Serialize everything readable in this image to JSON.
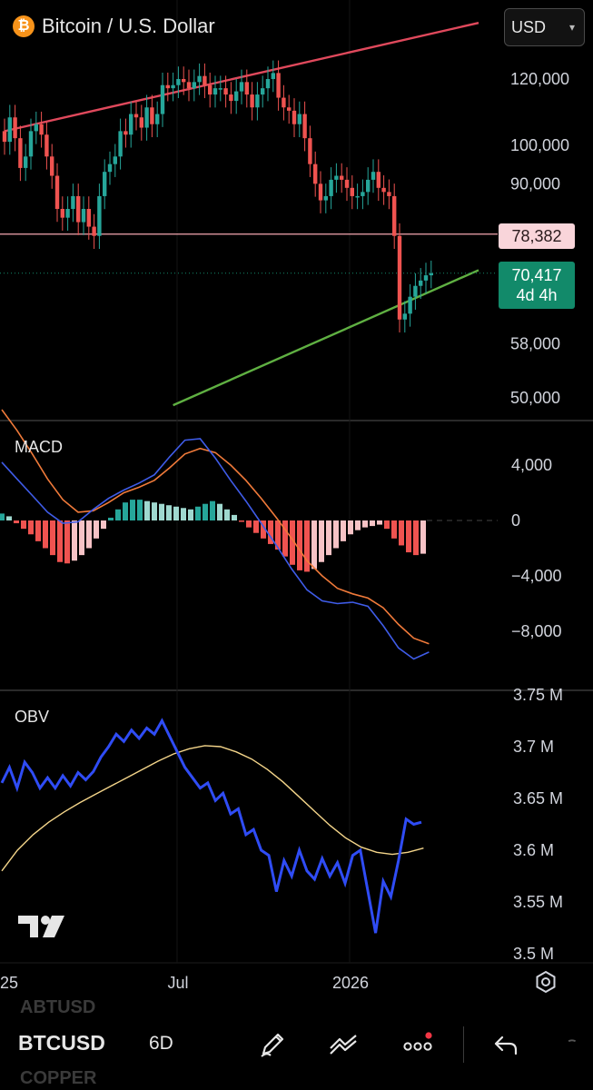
{
  "header": {
    "logo_glyph": "₿",
    "title": "Bitcoin / U.S. Dollar",
    "currency": "USD"
  },
  "price_tags": {
    "key_level": "78,382",
    "current_price": "70,417",
    "countdown": "4d 4h"
  },
  "panes": {
    "macd_label": "MACD",
    "obv_label": "OBV"
  },
  "toolbar": {
    "symbol": "BTCUSD",
    "timeframe": "6D",
    "ghost_above": "ABTUSD",
    "ghost_below": "COPPER"
  },
  "colors": {
    "up": "#26a69a",
    "down": "#ef5350",
    "resistance_line": "#e0495c",
    "support_line": "#5fb042",
    "key_level_line": "#f4a7b0",
    "macd_line": "#3f5ce8",
    "signal_line": "#f07a3a",
    "obv_line": "#2f4cf5",
    "obv_ma": "#f4d58a"
  },
  "chart_data": [
    {
      "type": "candlestick",
      "title": "Bitcoin / U.S. Dollar",
      "x_tick_labels": [
        "25",
        "Jul",
        "2026"
      ],
      "y_tick_labels": [
        "120,000",
        "100,000",
        "90,000",
        "58,000",
        "50,000"
      ],
      "y_ticks": [
        120000,
        100000,
        90000,
        58000,
        50000
      ],
      "scale": "log",
      "horizontal_level": 78382,
      "last_price": 70417,
      "trendlines": [
        {
          "name": "resistance",
          "from": [
            0,
            104000
          ],
          "to": [
            90,
            140000
          ]
        },
        {
          "name": "support",
          "from": [
            32,
            49000
          ],
          "to": [
            90,
            71000
          ]
        }
      ],
      "close": [
        101000,
        108000,
        102000,
        94000,
        97000,
        104000,
        106000,
        103000,
        97000,
        92000,
        84000,
        82000,
        84000,
        87000,
        81000,
        84000,
        80000,
        78000,
        87000,
        93000,
        95000,
        97000,
        104000,
        103000,
        109000,
        108000,
        105000,
        111000,
        106000,
        109000,
        118000,
        117000,
        118000,
        120000,
        119000,
        117000,
        119000,
        121000,
        118000,
        115000,
        117000,
        117000,
        115000,
        113000,
        116000,
        119000,
        115000,
        111000,
        115000,
        117000,
        120000,
        122000,
        114000,
        111000,
        110000,
        106000,
        109000,
        102000,
        95000,
        90000,
        86000,
        87000,
        91000,
        92000,
        91000,
        89000,
        87000,
        87000,
        88000,
        91000,
        93000,
        89000,
        88000,
        87000,
        78000,
        62000,
        63000,
        66000,
        68000,
        69000,
        70000,
        70417
      ],
      "open": [
        104000,
        101000,
        108000,
        102000,
        94000,
        97000,
        104000,
        106000,
        103000,
        97000,
        92000,
        84000,
        82000,
        84000,
        87000,
        81000,
        84000,
        80000,
        78000,
        87000,
        93000,
        95000,
        97000,
        104000,
        103000,
        109000,
        108000,
        105000,
        111000,
        106000,
        109000,
        118000,
        117000,
        118000,
        120000,
        119000,
        117000,
        119000,
        121000,
        118000,
        115000,
        117000,
        117000,
        115000,
        113000,
        116000,
        119000,
        115000,
        111000,
        115000,
        117000,
        120000,
        122000,
        114000,
        111000,
        110000,
        106000,
        109000,
        102000,
        95000,
        90000,
        86000,
        87000,
        91000,
        92000,
        91000,
        89000,
        87000,
        87000,
        88000,
        91000,
        93000,
        89000,
        88000,
        87000,
        78000,
        62000,
        63000,
        66000,
        68000,
        69000,
        70000
      ]
    },
    {
      "type": "bar_line",
      "name": "MACD",
      "y_tick_labels": [
        "4,000",
        "0",
        "−4,000",
        "−8,000"
      ],
      "y_ticks": [
        4000,
        0,
        -4000,
        -8000
      ],
      "histogram": [
        500,
        300,
        -200,
        -600,
        -1000,
        -1500,
        -2000,
        -2500,
        -3000,
        -3100,
        -2900,
        -2500,
        -2000,
        -1300,
        -600,
        200,
        800,
        1300,
        1500,
        1500,
        1400,
        1300,
        1200,
        1100,
        1000,
        900,
        800,
        1000,
        1200,
        1400,
        1200,
        800,
        400,
        -100,
        -500,
        -900,
        -1300,
        -1700,
        -2100,
        -2600,
        -3200,
        -3600,
        -3700,
        -3500,
        -3000,
        -2500,
        -2000,
        -1500,
        -1000,
        -700,
        -500,
        -400,
        -300,
        -600,
        -1300,
        -1800,
        -2300,
        -2500,
        -2400
      ],
      "macd": [
        4200,
        3000,
        1800,
        600,
        -200,
        -100,
        800,
        1600,
        2200,
        2700,
        3300,
        4600,
        5800,
        5900,
        4500,
        2900,
        1400,
        -200,
        -1800,
        -3500,
        -5000,
        -5800,
        -6000,
        -5900,
        -6200,
        -7600,
        -9200,
        -10000,
        -9500
      ],
      "signal": [
        8000,
        6500,
        4800,
        3000,
        1500,
        600,
        700,
        1300,
        2000,
        2400,
        2900,
        3800,
        4800,
        5200,
        4900,
        4000,
        2900,
        1600,
        200,
        -1300,
        -2900,
        -4000,
        -4900,
        -5300,
        -5600,
        -6300,
        -7500,
        -8500,
        -8900
      ]
    },
    {
      "type": "line",
      "name": "OBV",
      "y_tick_labels": [
        "3.75 M",
        "3.7 M",
        "3.65 M",
        "3.6 M",
        "3.55 M",
        "3.5 M"
      ],
      "y_ticks": [
        3.75,
        3.7,
        3.65,
        3.6,
        3.55,
        3.5
      ],
      "obv": [
        3.665,
        3.68,
        3.66,
        3.685,
        3.675,
        3.66,
        3.67,
        3.66,
        3.672,
        3.662,
        3.675,
        3.668,
        3.676,
        3.69,
        3.7,
        3.712,
        3.705,
        3.716,
        3.708,
        3.718,
        3.712,
        3.725,
        3.71,
        3.695,
        3.68,
        3.67,
        3.66,
        3.665,
        3.648,
        3.655,
        3.635,
        3.64,
        3.615,
        3.62,
        3.6,
        3.595,
        3.56,
        3.59,
        3.575,
        3.6,
        3.58,
        3.572,
        3.592,
        3.575,
        3.588,
        3.568,
        3.595,
        3.6,
        3.56,
        3.52,
        3.57,
        3.555,
        3.59,
        3.63,
        3.625,
        3.627
      ],
      "obv_ma": [
        3.58,
        3.6,
        3.615,
        3.627,
        3.637,
        3.646,
        3.654,
        3.662,
        3.67,
        3.678,
        3.686,
        3.693,
        3.698,
        3.701,
        3.7,
        3.695,
        3.688,
        3.678,
        3.666,
        3.652,
        3.638,
        3.624,
        3.612,
        3.603,
        3.598,
        3.596,
        3.598,
        3.602
      ]
    }
  ]
}
